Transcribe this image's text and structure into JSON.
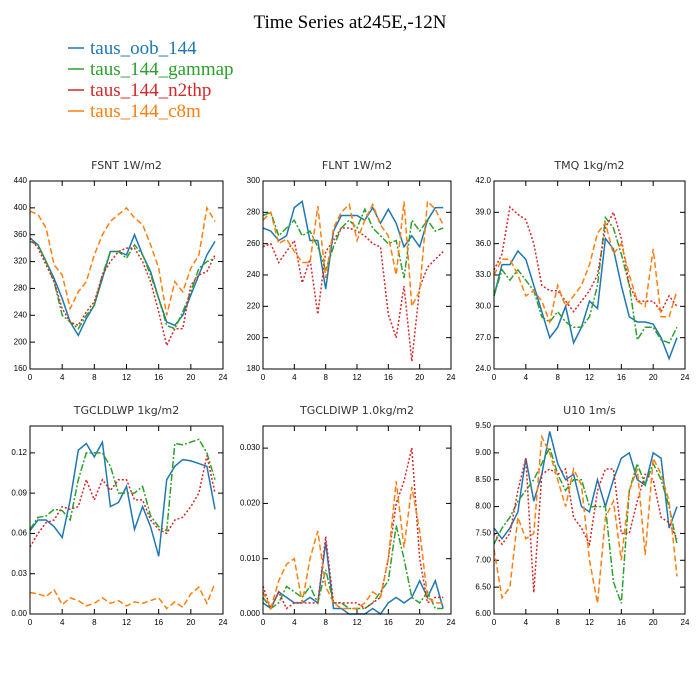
{
  "title": "Time Series at245E,-12N",
  "chart_data": [
    {
      "type": "line",
      "title": "FSNT   1W/m2",
      "x": [
        0,
        1,
        2,
        3,
        4,
        5,
        6,
        7,
        8,
        9,
        10,
        11,
        12,
        13,
        14,
        15,
        16,
        17,
        18,
        19,
        20,
        21,
        22,
        23
      ],
      "xlim": [
        0,
        24
      ],
      "xticks": [
        0,
        4,
        8,
        12,
        16,
        20,
        24
      ],
      "ylim": [
        160,
        440
      ],
      "yticks": [
        160,
        200,
        240,
        280,
        320,
        360,
        400,
        440
      ],
      "series": [
        {
          "name": "taus_oob_144",
          "color": "#1f77b4",
          "style": "solid",
          "values": [
            355,
            345,
            320,
            295,
            265,
            230,
            210,
            235,
            255,
            295,
            335,
            335,
            330,
            360,
            330,
            305,
            265,
            230,
            225,
            240,
            270,
            300,
            330,
            350
          ]
        },
        {
          "name": "taus_144_gammap",
          "color": "#2ca02c",
          "style": "dashdot",
          "values": [
            350,
            345,
            320,
            290,
            240,
            230,
            220,
            240,
            255,
            300,
            335,
            335,
            325,
            345,
            330,
            300,
            265,
            225,
            220,
            245,
            275,
            310,
            320,
            325
          ]
        },
        {
          "name": "taus_144_n2thp",
          "color": "#d62728",
          "style": "dotted",
          "values": [
            355,
            340,
            315,
            290,
            250,
            230,
            225,
            245,
            260,
            300,
            320,
            335,
            340,
            340,
            320,
            290,
            245,
            195,
            220,
            220,
            285,
            300,
            305,
            330
          ]
        },
        {
          "name": "taus_144_c8m",
          "color": "#ff7f0e",
          "style": "dashed",
          "values": [
            395,
            390,
            370,
            315,
            300,
            250,
            275,
            290,
            330,
            360,
            380,
            390,
            400,
            385,
            375,
            345,
            310,
            240,
            290,
            275,
            310,
            330,
            400,
            380
          ]
        }
      ]
    },
    {
      "type": "line",
      "title": "FLNT   1W/m2",
      "x": [
        0,
        1,
        2,
        3,
        4,
        5,
        6,
        7,
        8,
        9,
        10,
        11,
        12,
        13,
        14,
        15,
        16,
        17,
        18,
        19,
        20,
        21,
        22,
        23
      ],
      "xlim": [
        0,
        24
      ],
      "xticks": [
        0,
        4,
        8,
        12,
        16,
        20,
        24
      ],
      "ylim": [
        180,
        300
      ],
      "yticks": [
        180,
        200,
        220,
        240,
        260,
        280,
        300
      ],
      "series": [
        {
          "values": [
            270,
            268,
            262,
            265,
            283,
            287,
            262,
            262,
            231,
            268,
            278,
            278,
            278,
            275,
            283,
            273,
            282,
            273,
            258,
            265,
            258,
            275,
            283,
            283
          ]
        },
        {
          "values": [
            278,
            280,
            265,
            270,
            275,
            265,
            268,
            258,
            243,
            258,
            270,
            275,
            270,
            282,
            270,
            265,
            260,
            262,
            238,
            275,
            268,
            275,
            268,
            270
          ]
        },
        {
          "values": [
            258,
            260,
            248,
            255,
            262,
            235,
            250,
            215,
            255,
            262,
            270,
            270,
            268,
            265,
            260,
            258,
            215,
            200,
            233,
            185,
            232,
            245,
            250,
            255
          ]
        },
        {
          "values": [
            275,
            280,
            260,
            263,
            255,
            248,
            248,
            284,
            238,
            270,
            280,
            285,
            262,
            275,
            285,
            272,
            265,
            240,
            287,
            220,
            230,
            287,
            282,
            272
          ]
        }
      ]
    },
    {
      "type": "line",
      "title": "TMQ   1kg/m2",
      "x": [
        0,
        1,
        2,
        3,
        4,
        5,
        6,
        7,
        8,
        9,
        10,
        11,
        12,
        13,
        14,
        15,
        16,
        17,
        18,
        19,
        20,
        21,
        22,
        23
      ],
      "xlim": [
        0,
        24
      ],
      "xticks": [
        0,
        4,
        8,
        12,
        16,
        20,
        24
      ],
      "ylim": [
        24,
        42
      ],
      "yticks": [
        {
          "value": 24,
          "label": "24.0"
        },
        {
          "value": 27,
          "label": "27.0"
        },
        {
          "value": 30,
          "label": "30.0"
        },
        {
          "value": 33,
          "label": "33.0"
        },
        {
          "value": 36,
          "label": "36.0"
        },
        {
          "value": 39,
          "label": "39.0"
        },
        {
          "value": 42,
          "label": "42.0"
        }
      ],
      "series": [
        {
          "values": [
            31,
            34,
            34,
            35.3,
            34.5,
            32,
            29.5,
            27,
            28,
            30,
            26.5,
            28,
            30.5,
            29.8,
            36.5,
            35.5,
            32,
            29,
            28.5,
            28.5,
            28.3,
            27,
            25,
            27
          ]
        },
        {
          "values": [
            31,
            33.5,
            32.5,
            33.5,
            32.5,
            31.5,
            29,
            28.5,
            29.5,
            28.5,
            28,
            28,
            29,
            32,
            38.5,
            37.5,
            35,
            32,
            26.8,
            28,
            28,
            26.8,
            26.5,
            28
          ]
        },
        {
          "values": [
            33.5,
            35,
            39.5,
            38.8,
            38.3,
            36,
            32,
            31.5,
            31.5,
            30.5,
            29.5,
            30.5,
            31.5,
            33,
            37.5,
            39,
            36.5,
            32,
            30.5,
            30.5,
            30.5,
            29.5,
            31,
            30
          ]
        },
        {
          "values": [
            33,
            34.5,
            34.5,
            33,
            31,
            31.5,
            30.5,
            28.5,
            32,
            30,
            31,
            32,
            34,
            37,
            38,
            35,
            36,
            33,
            30.5,
            30,
            35.5,
            29,
            29,
            31.5
          ]
        }
      ]
    },
    {
      "type": "line",
      "title": "TGCLDLWP   1kg/m2",
      "x": [
        0,
        1,
        2,
        3,
        4,
        5,
        6,
        7,
        8,
        9,
        10,
        11,
        12,
        13,
        14,
        15,
        16,
        17,
        18,
        19,
        20,
        21,
        22,
        23
      ],
      "xlim": [
        0,
        24
      ],
      "xticks": [
        0,
        4,
        8,
        12,
        16,
        20,
        24
      ],
      "ylim": [
        0,
        0.14
      ],
      "yticks": [
        {
          "value": 0,
          "label": "0.00"
        },
        {
          "value": 0.03,
          "label": "0.03"
        },
        {
          "value": 0.06,
          "label": "0.06"
        },
        {
          "value": 0.09,
          "label": "0.09"
        },
        {
          "value": 0.12,
          "label": "0.12"
        }
      ],
      "series": [
        {
          "values": [
            0.062,
            0.07,
            0.07,
            0.065,
            0.057,
            0.085,
            0.122,
            0.127,
            0.117,
            0.128,
            0.08,
            0.083,
            0.095,
            0.063,
            0.08,
            0.065,
            0.043,
            0.1,
            0.11,
            0.115,
            0.114,
            0.112,
            0.11,
            0.078
          ]
        },
        {
          "values": [
            0.063,
            0.072,
            0.073,
            0.078,
            0.077,
            0.07,
            0.1,
            0.12,
            0.12,
            0.12,
            0.11,
            0.09,
            0.09,
            0.09,
            0.095,
            0.073,
            0.065,
            0.062,
            0.127,
            0.126,
            0.128,
            0.13,
            0.12,
            0.1
          ]
        },
        {
          "values": [
            0.05,
            0.06,
            0.068,
            0.07,
            0.08,
            0.078,
            0.08,
            0.1,
            0.085,
            0.1,
            0.092,
            0.1,
            0.1,
            0.085,
            0.085,
            0.07,
            0.063,
            0.06,
            0.07,
            0.072,
            0.08,
            0.09,
            0.118,
            0.09
          ]
        },
        {
          "values": [
            0.016,
            0.015,
            0.013,
            0.018,
            0.007,
            0.012,
            0.01,
            0.006,
            0.008,
            0.012,
            0.008,
            0.01,
            0.006,
            0.009,
            0.008,
            0.01,
            0.012,
            0.004,
            0.009,
            0.005,
            0.015,
            0.02,
            0.008,
            0.023
          ]
        }
      ]
    },
    {
      "type": "line",
      "title": "TGCLDIWP   1.0kg/m2",
      "x": [
        0,
        1,
        2,
        3,
        4,
        5,
        6,
        7,
        8,
        9,
        10,
        11,
        12,
        13,
        14,
        15,
        16,
        17,
        18,
        19,
        20,
        21,
        22,
        23
      ],
      "xlim": [
        0,
        24
      ],
      "xticks": [
        0,
        4,
        8,
        12,
        16,
        20,
        24
      ],
      "ylim": [
        0,
        0.034
      ],
      "yticks": [
        {
          "value": 0,
          "label": "0.000"
        },
        {
          "value": 0.01,
          "label": "0.010"
        },
        {
          "value": 0.02,
          "label": "0.020"
        },
        {
          "value": 0.03,
          "label": "0.030"
        }
      ],
      "series": [
        {
          "values": [
            0.002,
            0.001,
            0.004,
            0.003,
            0.002,
            0.002,
            0.003,
            0.002,
            0.013,
            0.001,
            0.001,
            0,
            0,
            0,
            0.001,
            0,
            0.002,
            0.003,
            0.002,
            0.003,
            0.006,
            0.003,
            0.006,
            0.001
          ]
        },
        {
          "values": [
            0.003,
            0.001,
            0.002,
            0.005,
            0.004,
            0.003,
            0.005,
            0.002,
            0.008,
            0.002,
            0.002,
            0.001,
            0.001,
            0.001,
            0.002,
            0.004,
            0.006,
            0.016,
            0.01,
            0.003,
            0.002,
            0.004,
            0.001,
            0.001
          ]
        },
        {
          "values": [
            0.005,
            0.001,
            0.004,
            0.001,
            0.002,
            0.002,
            0.002,
            0.002,
            0.014,
            0.002,
            0.002,
            0.002,
            0.002,
            0.001,
            0.002,
            0.003,
            0.01,
            0.02,
            0.024,
            0.03,
            0.01,
            0.002,
            0.003,
            0.003
          ]
        },
        {
          "values": [
            0.004,
            0.001,
            0.006,
            0.009,
            0.01,
            0.002,
            0.01,
            0.015,
            0.005,
            0.002,
            0.001,
            0.001,
            0.001,
            0.002,
            0.004,
            0.003,
            0.01,
            0.024,
            0.012,
            0.023,
            0.015,
            0.003,
            0.002,
            0.002
          ]
        }
      ]
    },
    {
      "type": "line",
      "title": "U10   1m/s",
      "x": [
        0,
        1,
        2,
        3,
        4,
        5,
        6,
        7,
        8,
        9,
        10,
        11,
        12,
        13,
        14,
        15,
        16,
        17,
        18,
        19,
        20,
        21,
        22,
        23
      ],
      "xlim": [
        0,
        24
      ],
      "xticks": [
        0,
        4,
        8,
        12,
        16,
        20,
        24
      ],
      "ylim": [
        6,
        9.5
      ],
      "yticks": [
        {
          "value": 6,
          "label": "6.00"
        },
        {
          "value": 6.5,
          "label": "6.50"
        },
        {
          "value": 7,
          "label": "7.00"
        },
        {
          "value": 7.5,
          "label": "7.50"
        },
        {
          "value": 8,
          "label": "8.00"
        },
        {
          "value": 8.5,
          "label": "8.50"
        },
        {
          "value": 9,
          "label": "9.00"
        },
        {
          "value": 9.5,
          "label": "9.50"
        }
      ],
      "series": [
        {
          "values": [
            7.6,
            7.4,
            7.6,
            7.9,
            8.9,
            8.1,
            8.6,
            9.4,
            8.8,
            8.5,
            8.6,
            8.0,
            7.9,
            8.5,
            8.0,
            8.5,
            8.9,
            9.0,
            8.5,
            8.4,
            9.0,
            8.9,
            7.6,
            8.0
          ]
        },
        {
          "values": [
            7.3,
            7.6,
            7.8,
            8.1,
            8.3,
            8.5,
            8.8,
            9.1,
            8.6,
            8.3,
            8.5,
            8.5,
            8.0,
            8.0,
            8.0,
            6.6,
            6.2,
            8.3,
            8.8,
            8.4,
            8.8,
            8.5,
            8.0,
            7.3
          ]
        },
        {
          "values": [
            7.5,
            7.3,
            7.5,
            8.3,
            8.9,
            6.4,
            8.6,
            8.7,
            8.6,
            8.7,
            7.8,
            7.6,
            7.3,
            8.3,
            8.7,
            8.7,
            7.5,
            7.5,
            8.1,
            8.6,
            8.5,
            7.8,
            7.7,
            7.4
          ]
        },
        {
          "values": [
            7.2,
            6.3,
            6.5,
            7.8,
            7.4,
            7.5,
            9.3,
            9.0,
            8.5,
            8.0,
            8.7,
            8.4,
            7.0,
            6.2,
            7.8,
            8.1,
            7.0,
            8.3,
            8.7,
            7.1,
            8.9,
            8.6,
            8.1,
            6.7
          ]
        }
      ]
    }
  ]
}
